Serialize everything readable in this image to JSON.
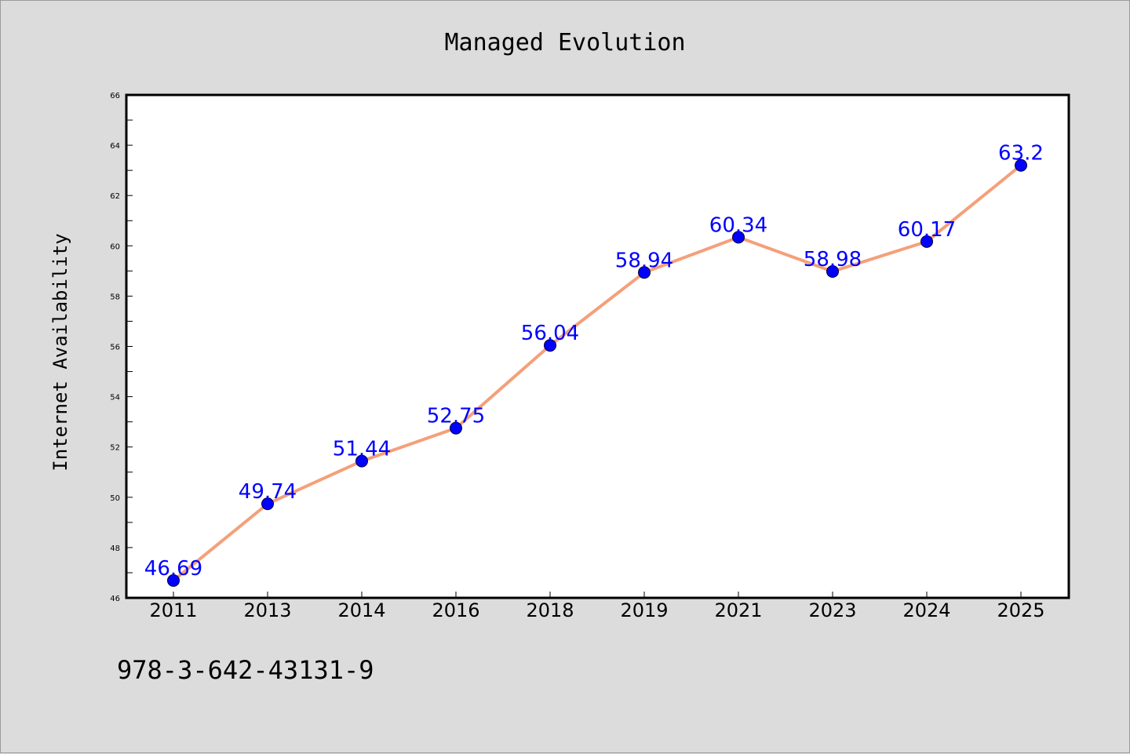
{
  "chart_data": {
    "type": "line",
    "title": "Managed Evolution",
    "xlabel": "",
    "ylabel": "Internet Availability",
    "categories": [
      "2011",
      "2013",
      "2014",
      "2016",
      "2018",
      "2019",
      "2021",
      "2023",
      "2024",
      "2025"
    ],
    "values": [
      46.69,
      49.74,
      51.44,
      52.75,
      56.04,
      58.94,
      60.34,
      58.98,
      60.17,
      63.2
    ],
    "data_labels": [
      "46.69",
      "49.74",
      "51.44",
      "52.75",
      "56.04",
      "58.94",
      "60.34",
      "58.98",
      "60.17",
      "63.2"
    ],
    "ylim": [
      46,
      66
    ],
    "yticks": [
      46,
      48,
      50,
      52,
      54,
      56,
      58,
      60,
      62,
      64,
      66
    ],
    "grid": false,
    "legend": "none",
    "colors": {
      "line": "#f4a07a",
      "marker": "#0000ff",
      "data_label": "#0000ff",
      "plot_background": "#ffffff",
      "page_background": "#dcdcdc"
    }
  },
  "footer": {
    "code": "978-3-642-43131-9"
  }
}
